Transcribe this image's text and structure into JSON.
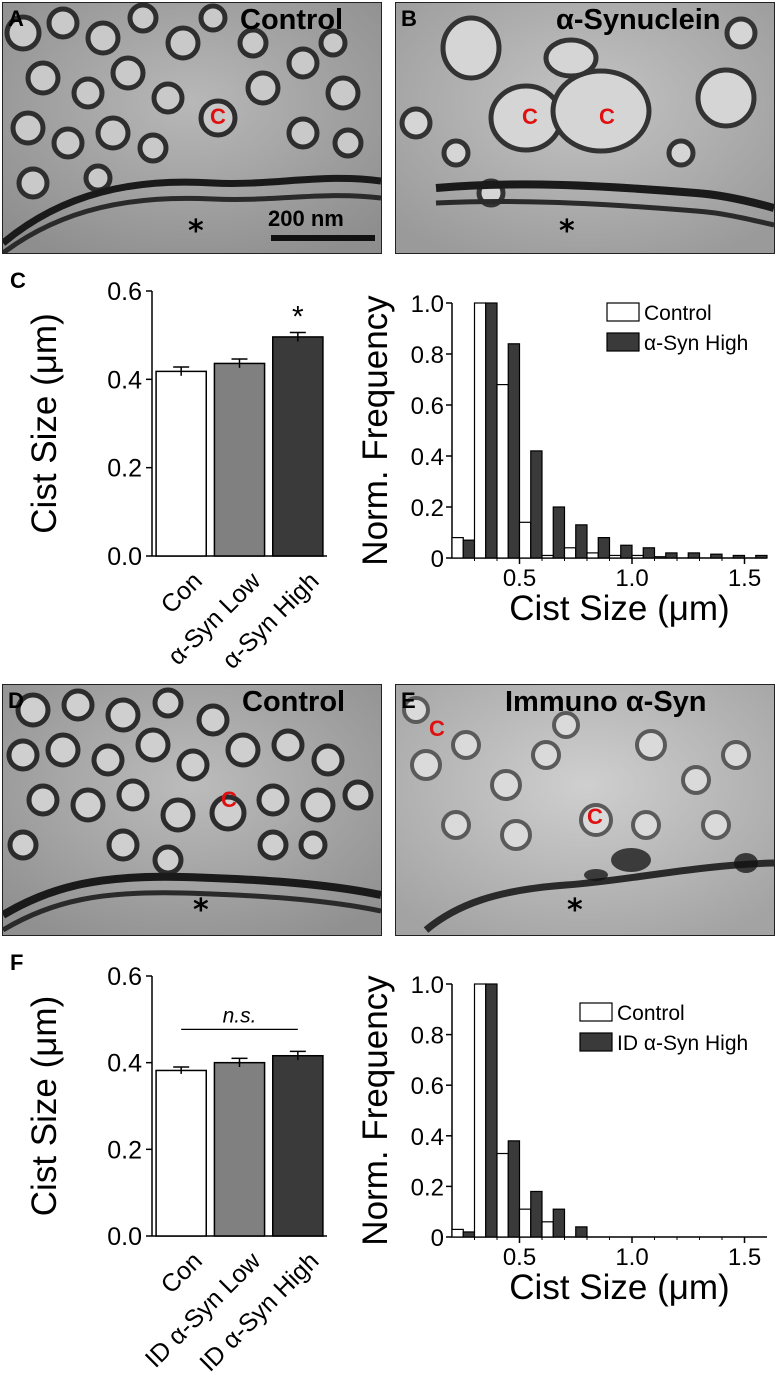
{
  "panels": {
    "A": {
      "letter": "A",
      "title": "Control",
      "c_labels": [
        "C"
      ],
      "asterisk": "*",
      "scalebar_label": "200 nm"
    },
    "B": {
      "letter": "B",
      "title": "α-Synuclein",
      "c_labels": [
        "C",
        "C"
      ],
      "asterisk": "*"
    },
    "C": {
      "letter": "C"
    },
    "D": {
      "letter": "D",
      "title": "Control",
      "c_labels": [
        "C"
      ],
      "asterisk": "*"
    },
    "E": {
      "letter": "E",
      "title": "Immuno α-Syn",
      "c_labels": [
        "C",
        "C"
      ],
      "asterisk": "*"
    },
    "F": {
      "letter": "F"
    }
  },
  "chart_data": [
    {
      "id": "C-bar",
      "type": "bar",
      "categories": [
        "Con",
        "α-Syn Low",
        "α-Syn High"
      ],
      "values": [
        0.418,
        0.436,
        0.496
      ],
      "errors": [
        0.01,
        0.01,
        0.01
      ],
      "colors": [
        "#ffffff",
        "#808080",
        "#3a3a3a"
      ],
      "ylabel": "Cist Size (μm)",
      "ylim": [
        0,
        0.6
      ],
      "yticks": [
        "0.0",
        "0.2",
        "0.4",
        "0.6"
      ],
      "annotation": "*"
    },
    {
      "id": "C-hist",
      "type": "bar",
      "xlabel": "Cist Size (μm)",
      "ylabel": "Norm. Frequency",
      "xlim": [
        0.2,
        1.6
      ],
      "ylim": [
        0,
        1.0
      ],
      "xticks": [
        "0.5",
        "1.0",
        "1.5"
      ],
      "yticks": [
        "0",
        "0.2",
        "0.4",
        "0.6",
        "0.8",
        "1.0"
      ],
      "bin_centers": [
        0.25,
        0.35,
        0.45,
        0.55,
        0.65,
        0.75,
        0.85,
        0.95,
        1.05,
        1.15,
        1.25,
        1.35,
        1.45,
        1.55
      ],
      "legend_position": "top-right",
      "series": [
        {
          "name": "Control",
          "color": "#ffffff",
          "values": [
            0.08,
            1.0,
            0.68,
            0.14,
            0.01,
            0.04,
            0.02,
            0.01,
            0.01,
            0.005,
            0.0,
            0.0,
            0.0,
            0.0
          ]
        },
        {
          "name": "α-Syn High",
          "color": "#3a3a3a",
          "values": [
            0.07,
            1.0,
            0.84,
            0.42,
            0.2,
            0.13,
            0.08,
            0.05,
            0.04,
            0.02,
            0.02,
            0.015,
            0.01,
            0.01
          ]
        }
      ]
    },
    {
      "id": "F-bar",
      "type": "bar",
      "categories": [
        "Con",
        "ID α-Syn Low",
        "ID α-Syn High"
      ],
      "values": [
        0.382,
        0.4,
        0.416
      ],
      "errors": [
        0.008,
        0.01,
        0.01
      ],
      "colors": [
        "#ffffff",
        "#808080",
        "#3a3a3a"
      ],
      "ylabel": "Cist Size (μm)",
      "ylim": [
        0,
        0.6
      ],
      "yticks": [
        "0.0",
        "0.2",
        "0.4",
        "0.6"
      ],
      "annotation": "n.s."
    },
    {
      "id": "F-hist",
      "type": "bar",
      "xlabel": "Cist Size (μm)",
      "ylabel": "Norm. Frequency",
      "xlim": [
        0.2,
        1.6
      ],
      "ylim": [
        0,
        1.0
      ],
      "xticks": [
        "0.5",
        "1.0",
        "1.5"
      ],
      "yticks": [
        "0",
        "0.2",
        "0.4",
        "0.6",
        "0.8",
        "1.0"
      ],
      "bin_centers": [
        0.25,
        0.35,
        0.45,
        0.55,
        0.65,
        0.75
      ],
      "legend_position": "top-right",
      "series": [
        {
          "name": "Control",
          "color": "#ffffff",
          "values": [
            0.03,
            1.0,
            0.33,
            0.11,
            0.06,
            0.0
          ]
        },
        {
          "name": "ID α-Syn High",
          "color": "#3a3a3a",
          "values": [
            0.02,
            1.0,
            0.38,
            0.18,
            0.11,
            0.04
          ]
        }
      ]
    }
  ]
}
